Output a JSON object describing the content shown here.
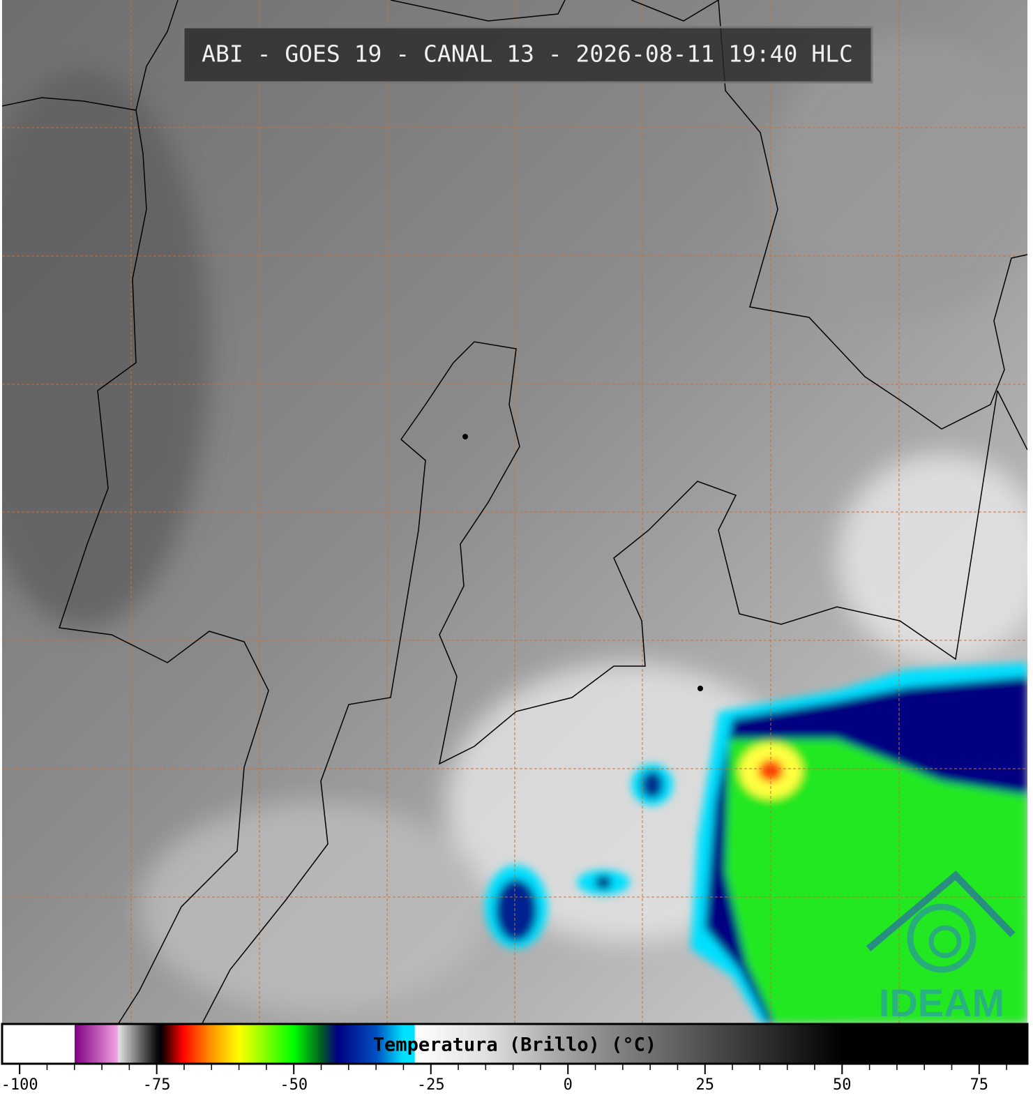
{
  "map": {
    "title": "ABI - GOES 19 - CANAL 13 - 2026-08-11 19:40 HLC",
    "logo": "IDEAM",
    "colorbar": {
      "label": "Temperatura (Brillo) (°C)",
      "xlim": [
        -103.2,
        83.8
      ],
      "xticks": [
        -100,
        -75,
        -50,
        -25,
        0,
        25,
        50,
        75
      ],
      "minor_ticks": [
        -95,
        -90,
        -85,
        -80,
        -70,
        -65,
        -60,
        -55,
        -45,
        -40,
        -35,
        -30,
        -20,
        -15,
        -10,
        -5,
        5,
        10,
        15,
        20,
        30,
        35,
        40,
        45,
        55,
        60,
        65,
        70,
        80
      ]
    }
  }
}
